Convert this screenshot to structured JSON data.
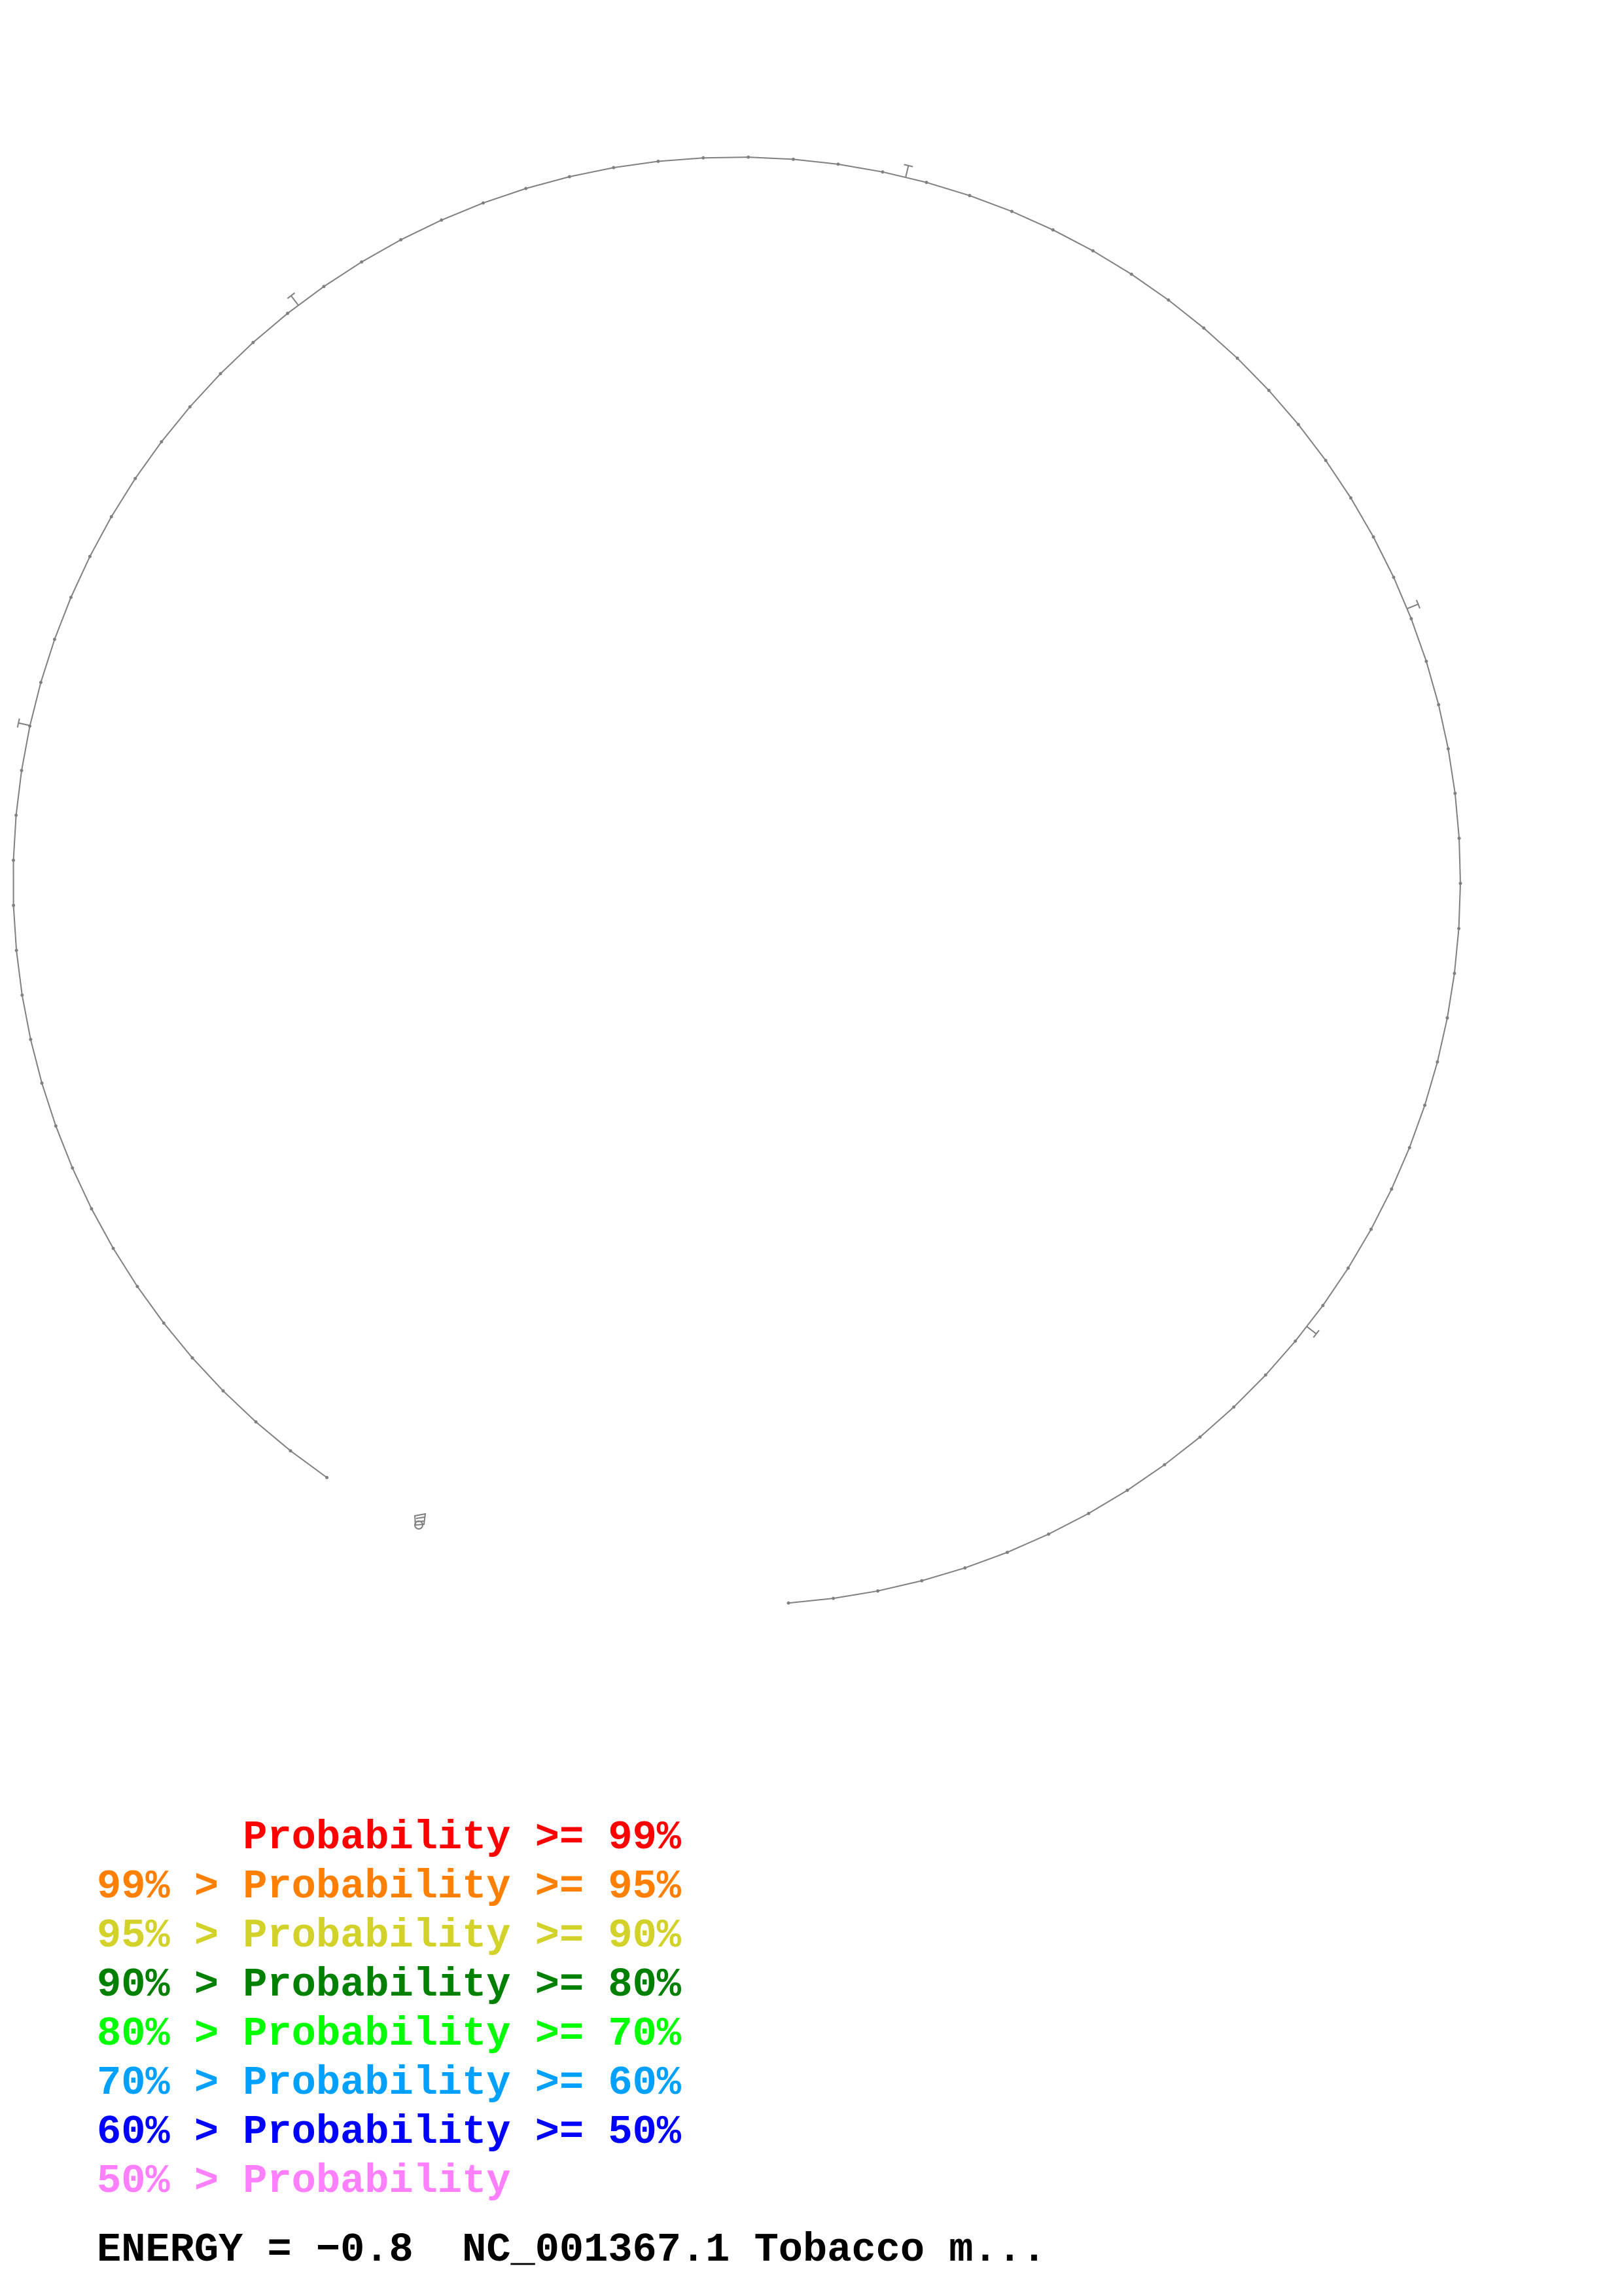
{
  "legend": [
    {
      "upper": "",
      "sep": "",
      "word": "Probability",
      "lower": "99%",
      "color": "#ff0000"
    },
    {
      "upper": "99%",
      "sep": ">",
      "word": "Probability",
      "lower": "95%",
      "color": "#ff8000"
    },
    {
      "upper": "95%",
      "sep": ">",
      "word": "Probability",
      "lower": "90%",
      "color": "#d2d22a"
    },
    {
      "upper": "90%",
      "sep": ">",
      "word": "Probability",
      "lower": "80%",
      "color": "#008000"
    },
    {
      "upper": "80%",
      "sep": ">",
      "word": "Probability",
      "lower": "70%",
      "color": "#00ff00"
    },
    {
      "upper": "70%",
      "sep": ">",
      "word": "Probability",
      "lower": "60%",
      "color": "#00a0ff"
    },
    {
      "upper": "60%",
      "sep": ">",
      "word": "Probability",
      "lower": "50%",
      "color": "#0000ff"
    },
    {
      "upper": "50%",
      "sep": ">",
      "word": "Probability",
      "lower": "",
      "color": "#ff80ff"
    }
  ],
  "ge_symbol": ">=",
  "footer": {
    "energy_label": "ENERGY = ",
    "energy_value": "−0.8",
    "sequence_name": "NC_001367.1 Tobacco m..."
  },
  "colors": {
    "backbone": "#808080",
    "background": "#ffffff"
  }
}
